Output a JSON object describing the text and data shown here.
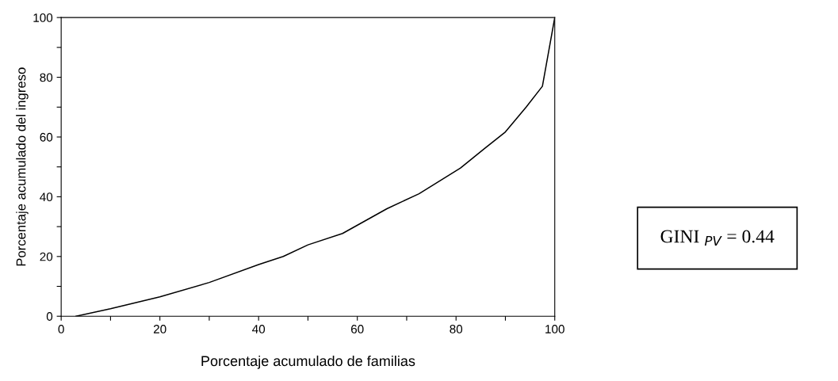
{
  "chart_data": {
    "type": "line",
    "xlabel": "Porcentaje acumulado de familias",
    "ylabel": "Porcentaje acumulado del ingreso",
    "x": [
      3,
      10,
      20,
      30,
      40,
      45,
      50,
      57,
      66,
      72.5,
      80.9,
      85.8,
      90,
      94.2,
      97.5,
      100
    ],
    "series": [
      {
        "color": "#000000",
        "values": [
          0,
          2.5,
          6.5,
          11.3,
          17.3,
          20,
          23.9,
          27.7,
          36,
          41,
          49.6,
          56.2,
          61.7,
          70,
          77,
          100
        ]
      }
    ],
    "xlim": [
      0,
      100
    ],
    "ylim": [
      0,
      100
    ],
    "xticks": [
      0,
      {
        "value": 10,
        "label": null
      },
      20,
      {
        "value": 30,
        "label": null
      },
      40,
      {
        "value": 50,
        "label": null
      },
      60,
      {
        "value": 70,
        "label": null
      },
      80,
      {
        "value": 90,
        "label": null
      },
      100
    ],
    "yticks": [
      0,
      {
        "value": 10,
        "label": null
      },
      20,
      {
        "value": 30,
        "label": null
      },
      40,
      {
        "value": 50,
        "label": null
      },
      60,
      {
        "value": 70,
        "label": null
      },
      80,
      {
        "value": 90,
        "label": null
      },
      100
    ],
    "grid": false,
    "legend": false,
    "marker": "none",
    "line_style": "solid",
    "annotations": [
      "GINI $_{PV}$ = 0.44"
    ]
  }
}
